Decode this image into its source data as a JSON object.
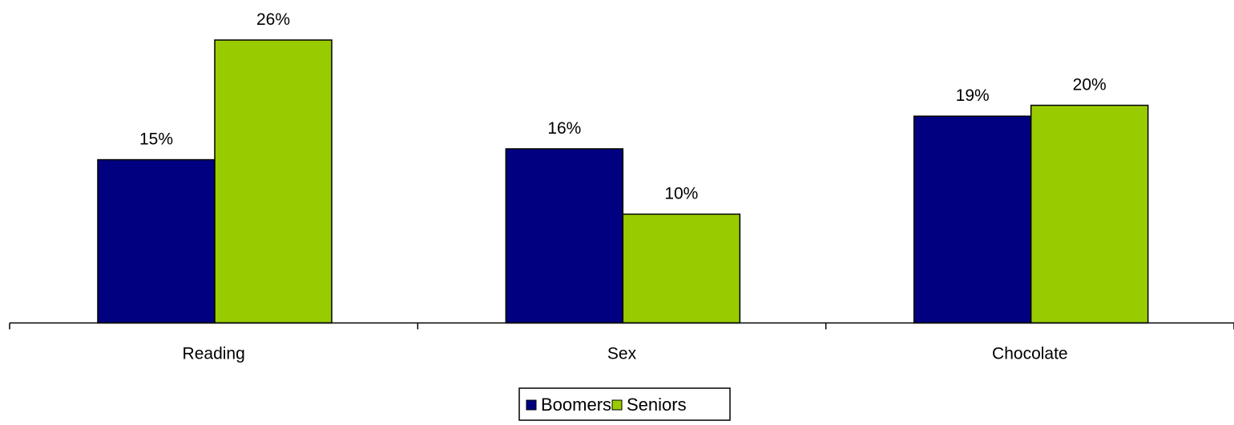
{
  "chart_data": {
    "type": "bar",
    "categories": [
      "Reading",
      "Sex",
      "Chocolate"
    ],
    "series": [
      {
        "name": "Boomers",
        "values": [
          15,
          16,
          19
        ],
        "labels": [
          "15%",
          "16%",
          "19%"
        ],
        "color": "#000080"
      },
      {
        "name": "Seniors",
        "values": [
          26,
          10,
          20
        ],
        "labels": [
          "26%",
          "10%",
          "20%"
        ],
        "color": "#99CC00"
      }
    ],
    "title": "",
    "xlabel": "",
    "ylabel": "",
    "ylim": [
      0,
      26
    ],
    "value_unit": "%",
    "grid": false,
    "legend_position": "bottom-center"
  }
}
